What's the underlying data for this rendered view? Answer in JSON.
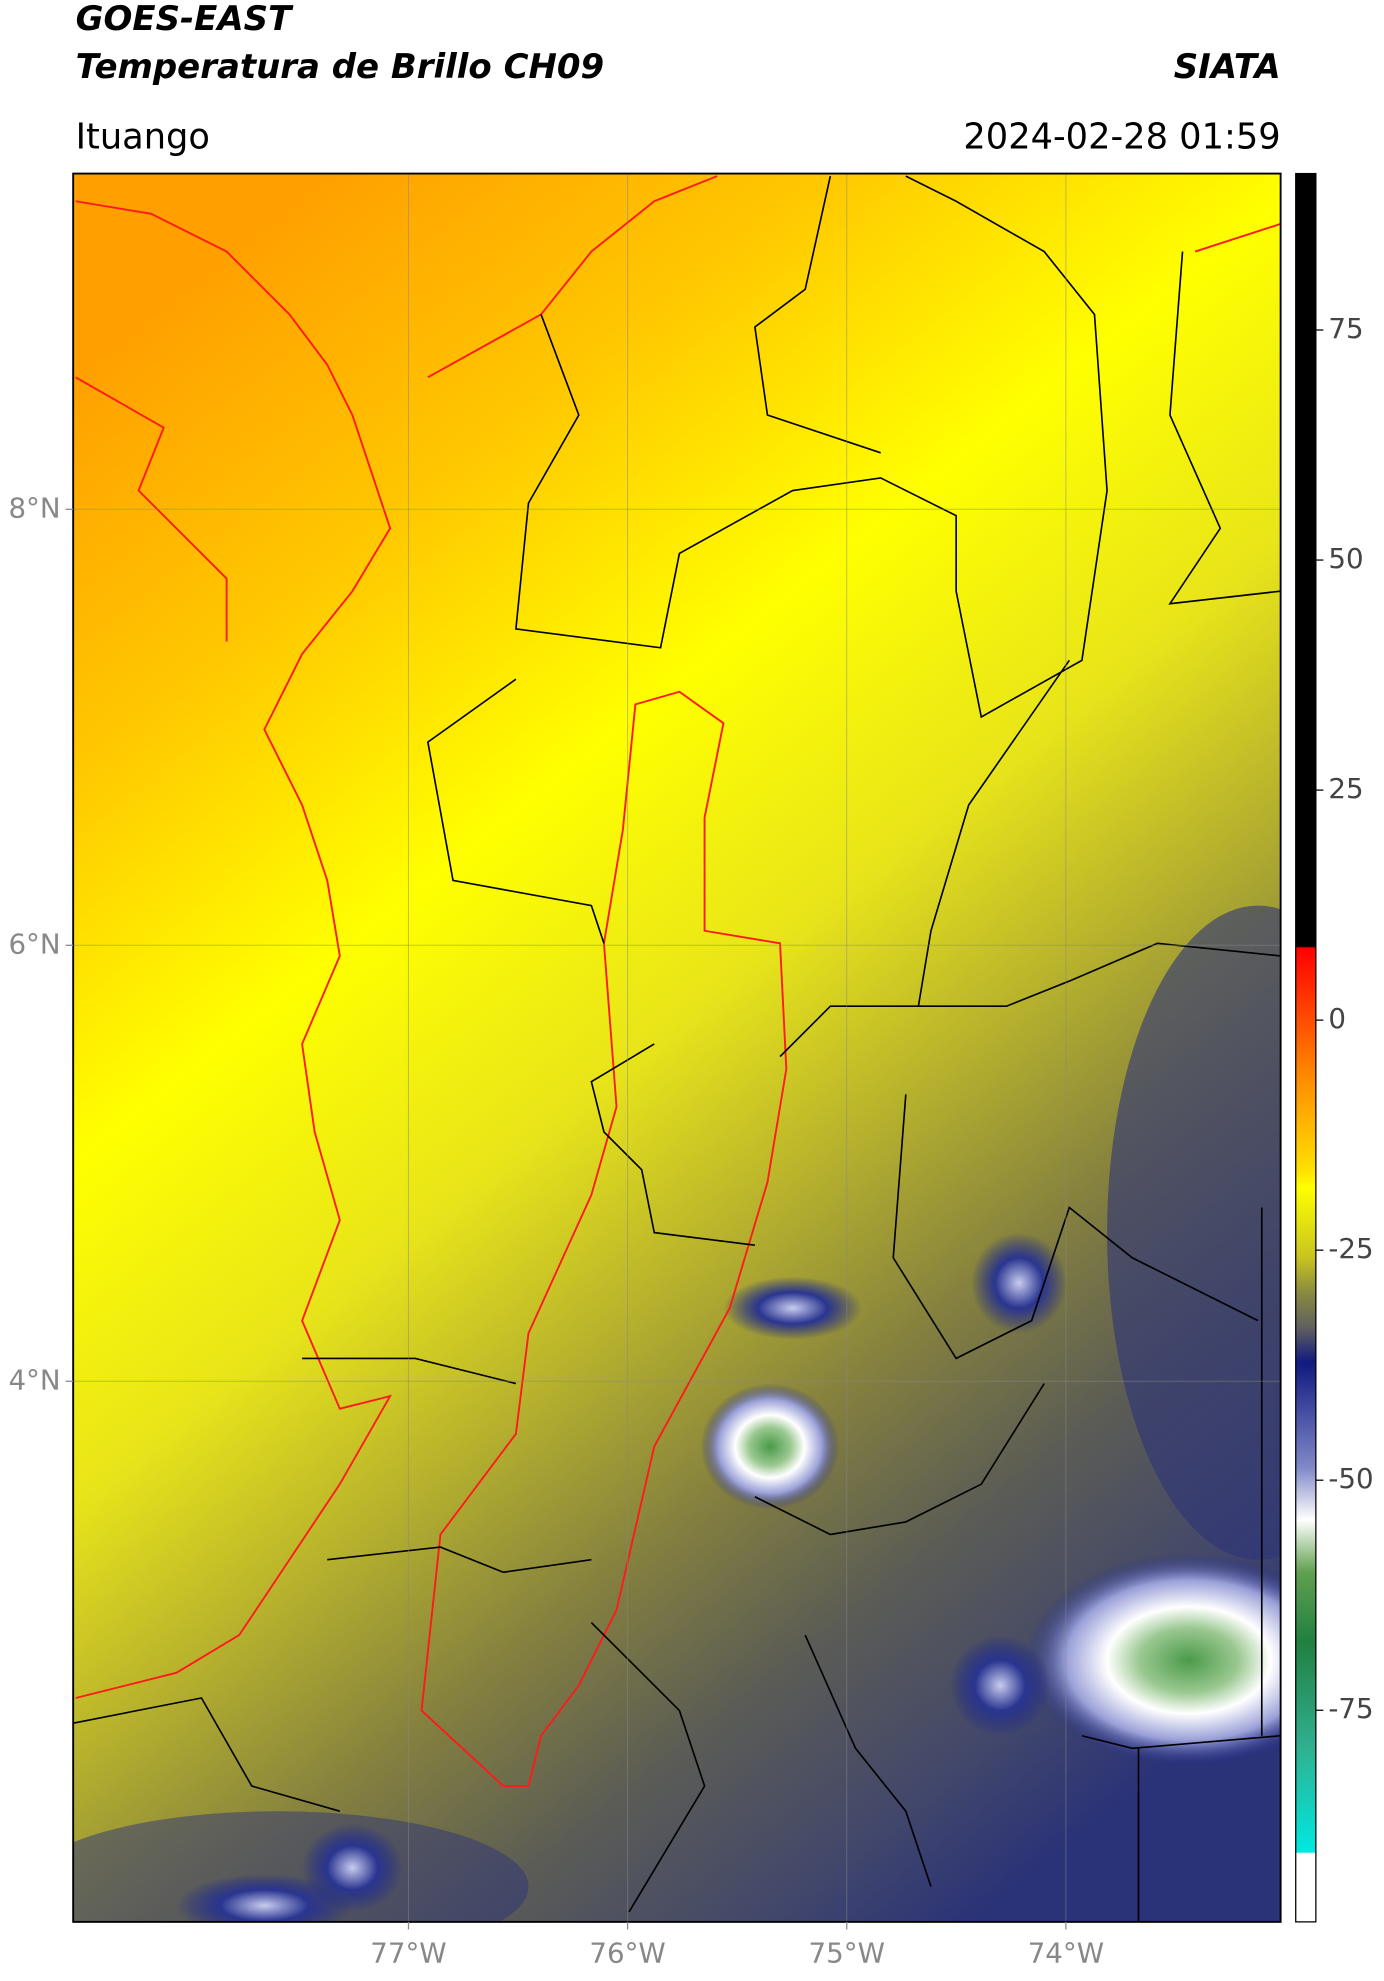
{
  "header": {
    "title": "GOES-EAST",
    "subtitle": "Temperatura de Brillo CH09",
    "organization": "SIATA",
    "region": "Ituango",
    "datetime": "2024-02-28 01:59"
  },
  "map": {
    "lon_range": [
      -78.53,
      -73.02
    ],
    "lat_range": [
      1.52,
      9.54
    ],
    "lon_ticks": [
      {
        "value": -77,
        "label": "77°W"
      },
      {
        "value": -76,
        "label": "76°W"
      },
      {
        "value": -75,
        "label": "75°W"
      },
      {
        "value": -74,
        "label": "74°W"
      }
    ],
    "lat_ticks": [
      {
        "value": 8,
        "label": "8°N"
      },
      {
        "value": 6,
        "label": "6°N"
      },
      {
        "value": 4,
        "label": "4°N"
      }
    ],
    "grid": true
  },
  "colorbar": {
    "range": [
      -98,
      92
    ],
    "ticks": [
      75,
      50,
      25,
      0,
      -25,
      -50,
      -75
    ]
  }
}
